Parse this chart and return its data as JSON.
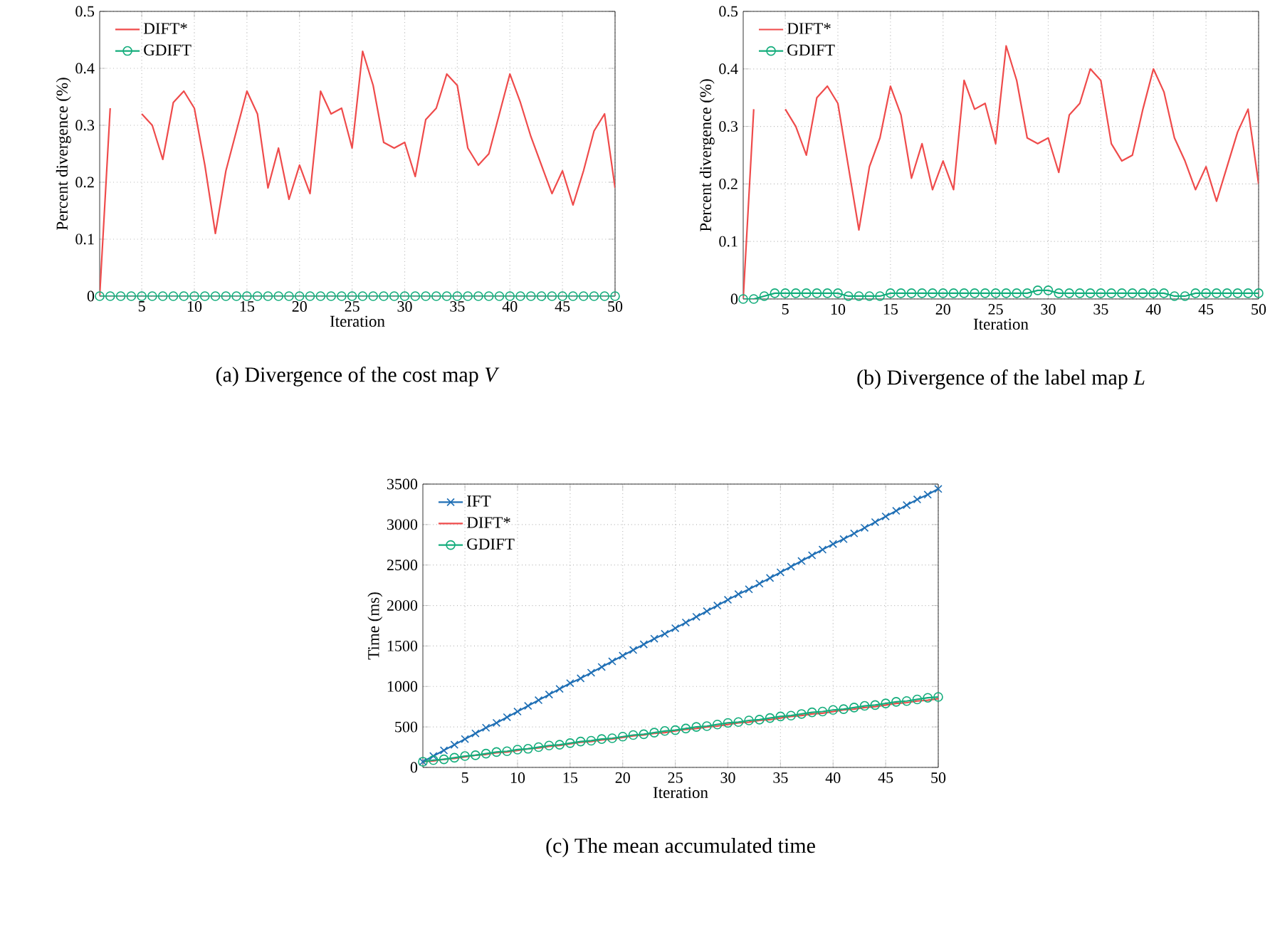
{
  "chart_data": [
    {
      "type": "line",
      "title": "(a) Divergence of the cost map *V*",
      "xlabel": "Iteration",
      "ylabel": "Percent divergence (%)",
      "x": [
        1,
        2,
        3,
        4,
        5,
        6,
        7,
        8,
        9,
        10,
        11,
        12,
        13,
        14,
        15,
        16,
        17,
        18,
        19,
        20,
        21,
        22,
        23,
        24,
        25,
        26,
        27,
        28,
        29,
        30,
        31,
        32,
        33,
        34,
        35,
        36,
        37,
        38,
        39,
        40,
        41,
        42,
        43,
        44,
        45,
        46,
        47,
        48,
        49,
        50
      ],
      "xlim": [
        1,
        50
      ],
      "xticks": [
        5,
        10,
        15,
        20,
        25,
        30,
        35,
        40,
        45,
        50
      ],
      "ylim": [
        0,
        0.5
      ],
      "yticks": [
        0,
        0.1,
        0.2,
        0.3,
        0.4,
        0.5
      ],
      "grid": true,
      "legend": "top left",
      "series": [
        {
          "name": "DIFT*",
          "color": "#ef4b4b",
          "marker": "none",
          "values": [
            0,
            0.33,
            null,
            null,
            0.32,
            0.3,
            0.24,
            0.34,
            0.36,
            0.33,
            0.23,
            0.11,
            0.22,
            0.29,
            0.36,
            0.32,
            0.19,
            0.26,
            0.17,
            0.23,
            0.18,
            0.36,
            0.32,
            0.33,
            0.26,
            0.43,
            0.37,
            0.27,
            0.26,
            0.27,
            0.21,
            0.31,
            0.33,
            0.39,
            0.37,
            0.26,
            0.23,
            0.25,
            0.32,
            0.39,
            0.34,
            0.28,
            0.23,
            0.18,
            0.22,
            0.16,
            0.22,
            0.29,
            0.32,
            0.19
          ]
        },
        {
          "name": "GDIFT",
          "color": "#14ad7c",
          "marker": "circle",
          "values": [
            0,
            0,
            0,
            0,
            0,
            0,
            0,
            0,
            0,
            0,
            0,
            0,
            0,
            0,
            0,
            0,
            0,
            0,
            0,
            0,
            0,
            0,
            0,
            0,
            0,
            0,
            0,
            0,
            0,
            0,
            0,
            0,
            0,
            0,
            0,
            0,
            0,
            0,
            0,
            0,
            0,
            0,
            0,
            0,
            0,
            0,
            0,
            0,
            0,
            0
          ]
        }
      ]
    },
    {
      "type": "line",
      "title": "(b) Divergence of the label map *L*",
      "xlabel": "Iteration",
      "ylabel": "Percent divergence (%)",
      "x": [
        1,
        2,
        3,
        4,
        5,
        6,
        7,
        8,
        9,
        10,
        11,
        12,
        13,
        14,
        15,
        16,
        17,
        18,
        19,
        20,
        21,
        22,
        23,
        24,
        25,
        26,
        27,
        28,
        29,
        30,
        31,
        32,
        33,
        34,
        35,
        36,
        37,
        38,
        39,
        40,
        41,
        42,
        43,
        44,
        45,
        46,
        47,
        48,
        49,
        50
      ],
      "xlim": [
        1,
        50
      ],
      "xticks": [
        5,
        10,
        15,
        20,
        25,
        30,
        35,
        40,
        45,
        50
      ],
      "ylim": [
        0,
        0.5
      ],
      "yticks": [
        0,
        0.1,
        0.2,
        0.3,
        0.4,
        0.5
      ],
      "grid": true,
      "legend": "top left",
      "series": [
        {
          "name": "DIFT*",
          "color": "#ef4b4b",
          "marker": "none",
          "values": [
            0,
            0.33,
            null,
            null,
            0.33,
            0.3,
            0.25,
            0.35,
            0.37,
            0.34,
            0.23,
            0.12,
            0.23,
            0.28,
            0.37,
            0.32,
            0.21,
            0.27,
            0.19,
            0.24,
            0.19,
            0.38,
            0.33,
            0.34,
            0.27,
            0.44,
            0.38,
            0.28,
            0.27,
            0.28,
            0.22,
            0.32,
            0.34,
            0.4,
            0.38,
            0.27,
            0.24,
            0.25,
            0.33,
            0.4,
            0.36,
            0.28,
            0.24,
            0.19,
            0.23,
            0.17,
            0.23,
            0.29,
            0.33,
            0.2
          ]
        },
        {
          "name": "GDIFT",
          "color": "#14ad7c",
          "marker": "circle",
          "values": [
            0,
            0,
            0.005,
            0.01,
            0.01,
            0.01,
            0.01,
            0.01,
            0.01,
            0.01,
            0.005,
            0.005,
            0.005,
            0.005,
            0.01,
            0.01,
            0.01,
            0.01,
            0.01,
            0.01,
            0.01,
            0.01,
            0.01,
            0.01,
            0.01,
            0.01,
            0.01,
            0.01,
            0.015,
            0.015,
            0.01,
            0.01,
            0.01,
            0.01,
            0.01,
            0.01,
            0.01,
            0.01,
            0.01,
            0.01,
            0.01,
            0.005,
            0.005,
            0.01,
            0.01,
            0.01,
            0.01,
            0.01,
            0.01,
            0.01
          ]
        }
      ]
    },
    {
      "type": "line",
      "title": "(c) The mean accumulated time",
      "xlabel": "Iteration",
      "ylabel": "Time (ms)",
      "x": [
        1,
        2,
        3,
        4,
        5,
        6,
        7,
        8,
        9,
        10,
        11,
        12,
        13,
        14,
        15,
        16,
        17,
        18,
        19,
        20,
        21,
        22,
        23,
        24,
        25,
        26,
        27,
        28,
        29,
        30,
        31,
        32,
        33,
        34,
        35,
        36,
        37,
        38,
        39,
        40,
        41,
        42,
        43,
        44,
        45,
        46,
        47,
        48,
        49,
        50
      ],
      "xlim": [
        1,
        50
      ],
      "xticks": [
        5,
        10,
        15,
        20,
        25,
        30,
        35,
        40,
        45,
        50
      ],
      "ylim": [
        0,
        3500
      ],
      "yticks": [
        0,
        500,
        1000,
        1500,
        2000,
        2500,
        3000,
        3500
      ],
      "grid": true,
      "legend": "top left",
      "series": [
        {
          "name": "IFT",
          "color": "#1f6fb5",
          "marker": "cross",
          "values": [
            70,
            140,
            210,
            280,
            350,
            420,
            490,
            550,
            620,
            690,
            760,
            830,
            900,
            970,
            1040,
            1100,
            1170,
            1240,
            1310,
            1380,
            1450,
            1520,
            1590,
            1650,
            1720,
            1790,
            1860,
            1930,
            2000,
            2070,
            2140,
            2200,
            2270,
            2340,
            2410,
            2480,
            2550,
            2620,
            2690,
            2760,
            2820,
            2890,
            2960,
            3030,
            3100,
            3170,
            3240,
            3310,
            3370,
            3440
          ]
        },
        {
          "name": "DIFT*",
          "color": "#ef4b4b",
          "marker": "none",
          "values": [
            70,
            80,
            100,
            110,
            130,
            150,
            160,
            180,
            190,
            210,
            230,
            240,
            260,
            270,
            290,
            310,
            320,
            340,
            350,
            370,
            390,
            400,
            420,
            430,
            450,
            470,
            480,
            500,
            510,
            530,
            550,
            560,
            580,
            590,
            610,
            630,
            640,
            660,
            670,
            690,
            710,
            720,
            740,
            750,
            770,
            790,
            800,
            820,
            830,
            850
          ]
        },
        {
          "name": "GDIFT",
          "color": "#14ad7c",
          "marker": "circle",
          "values": [
            70,
            90,
            100,
            120,
            140,
            150,
            170,
            190,
            200,
            220,
            230,
            250,
            270,
            280,
            300,
            320,
            330,
            350,
            360,
            380,
            400,
            410,
            430,
            450,
            460,
            480,
            500,
            510,
            530,
            550,
            560,
            580,
            590,
            610,
            630,
            640,
            660,
            680,
            690,
            710,
            720,
            740,
            760,
            770,
            790,
            810,
            820,
            840,
            860,
            870
          ]
        }
      ]
    }
  ]
}
